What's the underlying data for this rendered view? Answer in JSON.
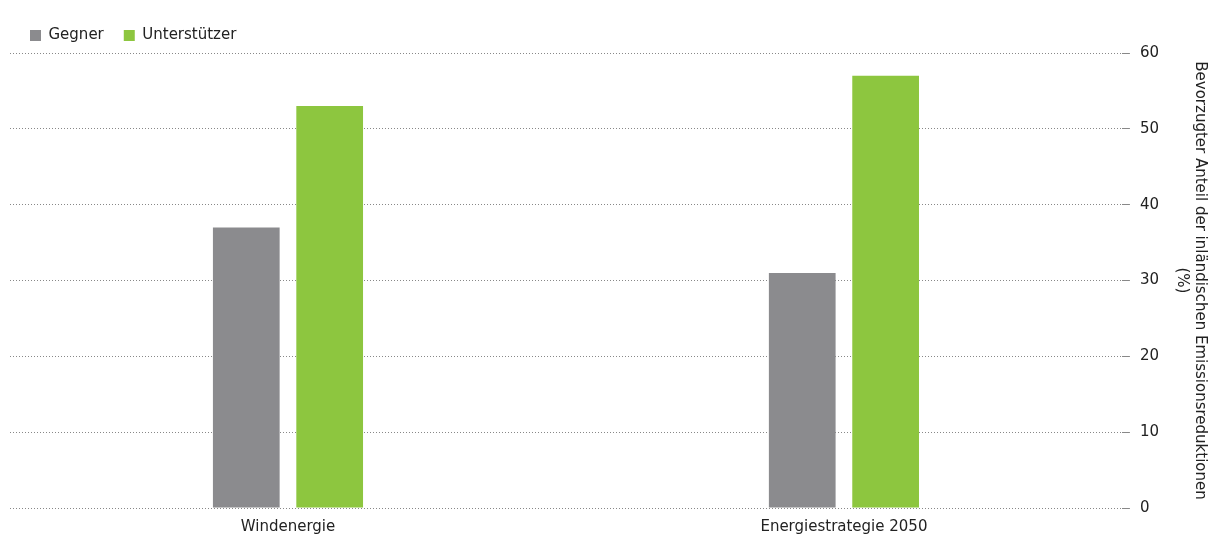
{
  "chart_data": {
    "type": "bar",
    "categories": [
      "Windenergie",
      "Energiestrategie 2050"
    ],
    "series": [
      {
        "name": "Gegner",
        "color": "#8b8b8e",
        "values": [
          37,
          31
        ]
      },
      {
        "name": "Unterstützer",
        "color": "#8dc63f",
        "values": [
          53,
          57
        ]
      }
    ],
    "ylabel": "Bevorzugter Anteil der inländischen Emissionsreduktionen (%)",
    "ylim": [
      0,
      60
    ],
    "yticks": [
      0,
      10,
      20,
      30,
      40,
      50,
      60
    ],
    "grid": "y",
    "legend": "top left"
  }
}
